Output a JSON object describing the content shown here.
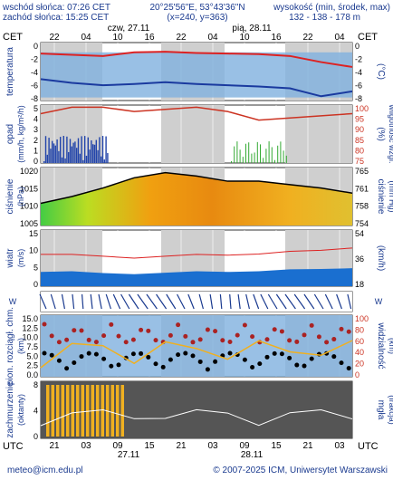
{
  "header": {
    "sunrise": "wschód słońca: 07:26 CET",
    "sunset": "zachód słońca: 15:25 CET",
    "coords": "20°25'56\"E, 53°43'36\"N",
    "grid": "(x=240,  y=363)",
    "elev_label": "wysokość (min, środek, max)",
    "elev_values": "132 - 138 - 178 m"
  },
  "top_axis": {
    "tz": "CET",
    "hours": [
      "22",
      "04",
      "10",
      "16",
      "22",
      "04",
      "10",
      "16",
      "22",
      "04"
    ],
    "days": [
      "czw, 27.11",
      "pią, 28.11"
    ]
  },
  "bottom_axis": {
    "tz": "UTC",
    "hours": [
      "21",
      "03",
      "09",
      "15",
      "21",
      "03",
      "09",
      "15",
      "21",
      "03"
    ],
    "days": [
      "27.11",
      "28.11"
    ]
  },
  "footer": {
    "email": "meteo@icm.edu.pl",
    "copyright": "© 2007-2025 ICM, Uniwersytet Warszawski"
  },
  "colors": {
    "panel_blue": "#7fb0de",
    "temp_red": "#dd2222",
    "temp_blue": "#1a3a9f",
    "humid_red": "#cc3322",
    "rain_blue": "#2244aa",
    "snow_green": "#33aa33",
    "cloud_orange": "#f0b020",
    "night_gray": "#cfcfcf"
  },
  "chart_data": [
    {
      "type": "line",
      "panel": "temperature",
      "ylabel": "temperatura",
      "yunit": "(°C)",
      "ylim": [
        -8.5,
        1
      ],
      "yticks": [
        "0",
        "-2",
        "-4",
        "-6",
        "-8"
      ],
      "x_hours": [
        0,
        6,
        12,
        18,
        24,
        30,
        36,
        42,
        48,
        54,
        60
      ],
      "series": [
        {
          "values": [
            -0.8,
            -1.0,
            -1.2,
            -0.6,
            -0.5,
            -0.7,
            -0.8,
            -0.9,
            -1.2,
            -2.2,
            -3.0
          ]
        },
        {
          "values": [
            -5.0,
            -5.6,
            -6.0,
            -5.8,
            -5.5,
            -5.8,
            -6.0,
            -6.2,
            -6.5,
            -7.8,
            -7.0
          ]
        }
      ]
    },
    {
      "type": "bar",
      "panel": "precipitation",
      "ylabel": "opad",
      "yunit": "(mm/h, kg/m²/h)",
      "y2label": "wilgotność wzgl.",
      "y2unit": "(%)",
      "ylim": [
        0,
        5
      ],
      "yticks": [
        "5",
        "4",
        "3",
        "2",
        "1",
        "0"
      ],
      "y2ticks": [
        "100",
        "95",
        "90",
        "85",
        "80",
        "75"
      ],
      "humidity": [
        96,
        99,
        99,
        97,
        98,
        99,
        97,
        93,
        94,
        95,
        96
      ]
    },
    {
      "type": "area",
      "panel": "pressure",
      "ylabel": "ciśnienie",
      "yunit": "(hPa)",
      "y2label": "ciśnienie",
      "y2unit": "(mm Hg)",
      "ylim": [
        1005,
        1022
      ],
      "yticks": [
        "1020",
        "1015",
        "1010",
        "1005"
      ],
      "y2ticks": [
        "765",
        "761",
        "758",
        "754"
      ],
      "values": [
        1011.5,
        1013.5,
        1016,
        1019,
        1020.5,
        1019.5,
        1018,
        1018,
        1017,
        1016,
        1014.5
      ]
    },
    {
      "type": "line",
      "panel": "wind",
      "ylabel": "wiatr",
      "yunit": "(m/s)",
      "y2unit": "(km/h)",
      "ylim": [
        0,
        15
      ],
      "yticks": [
        "15",
        "10",
        "5",
        "0"
      ],
      "y2ticks": [
        "54",
        "36",
        "18"
      ],
      "gusts": [
        8.5,
        8.5,
        8.0,
        7.5,
        8.0,
        8.5,
        8.3,
        8.6,
        9.3,
        9.6,
        10.2
      ],
      "mean": [
        3.8,
        4.0,
        3.5,
        3.2,
        3.6,
        4.0,
        3.8,
        4.0,
        4.5,
        4.6,
        4.8
      ]
    },
    {
      "type": "scatter",
      "panel": "visibility",
      "ylabel": "pion. rozciągł. chm.",
      "yunit": "(km)",
      "y2label": "widzialność",
      "y2unit": "(km)",
      "ylim": [
        0,
        15
      ],
      "yticks": [
        "15.0",
        "12.5",
        "10.0",
        "7.5",
        "5.0",
        "2.5",
        "0.0"
      ],
      "y2ticks": [
        "100",
        "80",
        "60",
        "40",
        "20",
        "0"
      ]
    },
    {
      "type": "area",
      "panel": "cloud_cover",
      "ylabel": "zachmurzenie",
      "yunit": "(oktanty)",
      "y2label": "mgła",
      "y2unit": "(frakcja)",
      "ylim": [
        0,
        8
      ],
      "yticks": [
        "8",
        "4",
        "0"
      ]
    }
  ]
}
